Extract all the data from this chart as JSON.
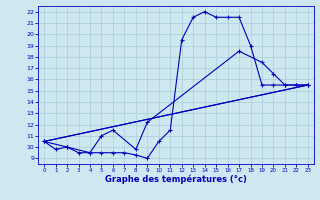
{
  "xlabel": "Graphe des températures (°c)",
  "bg_color": "#cde8f0",
  "grid_color": "#aaccd8",
  "line_color": "#0000bb",
  "xlim": [
    -0.5,
    23.5
  ],
  "ylim": [
    8.5,
    22.5
  ],
  "xticks": [
    0,
    1,
    2,
    3,
    4,
    5,
    6,
    7,
    8,
    9,
    10,
    11,
    12,
    13,
    14,
    15,
    16,
    17,
    18,
    19,
    20,
    21,
    22,
    23
  ],
  "yticks": [
    9,
    10,
    11,
    12,
    13,
    14,
    15,
    16,
    17,
    18,
    19,
    20,
    21,
    22
  ],
  "line1_x": [
    0,
    1,
    2,
    3,
    4,
    5,
    6,
    7,
    8,
    9,
    10,
    11,
    12,
    13,
    14,
    15,
    16,
    17,
    18,
    19,
    20,
    21,
    22,
    23
  ],
  "line1_y": [
    10.5,
    9.8,
    10.0,
    9.5,
    9.5,
    9.5,
    9.5,
    9.5,
    9.3,
    9.0,
    10.5,
    11.5,
    19.5,
    21.5,
    22.0,
    21.5,
    21.5,
    21.5,
    19.0,
    15.5,
    15.5,
    15.5,
    15.5,
    15.5
  ],
  "line2_x": [
    0,
    23
  ],
  "line2_y": [
    10.5,
    15.5
  ],
  "line3_x": [
    0,
    23
  ],
  "line3_y": [
    10.5,
    15.5
  ],
  "line4_x": [
    0,
    2,
    4,
    5,
    6,
    8,
    9,
    17,
    19,
    20,
    21,
    22,
    23
  ],
  "line4_y": [
    10.5,
    10.0,
    9.5,
    11.0,
    11.5,
    9.8,
    12.2,
    18.5,
    17.5,
    16.5,
    15.5,
    15.5,
    15.5
  ],
  "marker_line1_x": [
    0,
    1,
    2,
    3,
    4,
    5,
    6,
    7,
    8,
    9,
    10,
    11,
    12,
    13,
    14,
    15,
    16,
    17,
    18,
    19,
    20,
    21,
    22,
    23
  ],
  "marker_line1_y": [
    10.5,
    9.8,
    10.0,
    9.5,
    9.5,
    9.5,
    9.5,
    9.5,
    9.3,
    9.0,
    10.5,
    11.5,
    19.5,
    21.5,
    22.0,
    21.5,
    21.5,
    21.5,
    19.0,
    15.5,
    15.5,
    15.5,
    15.5,
    15.5
  ],
  "marker_line4_x": [
    0,
    2,
    4,
    5,
    6,
    8,
    9,
    17,
    19,
    20,
    21,
    22,
    23
  ],
  "marker_line4_y": [
    10.5,
    10.0,
    9.5,
    11.0,
    11.5,
    9.8,
    12.2,
    18.5,
    17.5,
    16.5,
    15.5,
    15.5,
    15.5
  ]
}
